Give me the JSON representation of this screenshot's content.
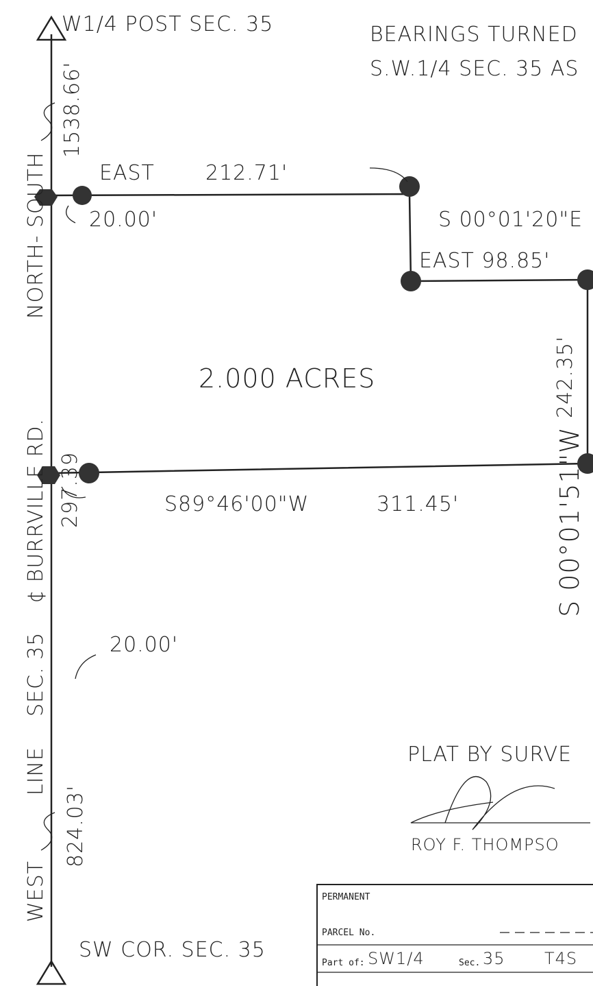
{
  "header": {
    "corner_top": "W1/4 POST SEC. 35",
    "note_line1": "BEARINGS TURNED",
    "note_line2": "S.W.1/4 SEC. 35 AS"
  },
  "plat": {
    "dist_north": "1538.66'",
    "east_label": "EAST",
    "east_dist": "212.71'",
    "offset_top": "20.00'",
    "bearing_notch": "S 00°01'20\"E",
    "east_notch": "EAST 98.85'",
    "area": "2.000 ACRES",
    "east_side_dist": "242.35'",
    "east_side_bearing": "S 00°01'51\"W",
    "west_dist": "297.39",
    "offset_bottom": "20.00'",
    "south_bearing": "S89°46'00\"W",
    "south_dist": "311.45'",
    "dist_south": "824.03'",
    "corner_bottom": "SW COR. SEC. 35"
  },
  "road_label": [
    "WEST",
    "LINE",
    "SEC. 35",
    "¢ BURRVILLE RD.",
    "NORTH- SOUTH"
  ],
  "surveyor": {
    "caption": "PLAT BY SURVE",
    "name": "ROY F. THOMPSO"
  },
  "parcel_table": {
    "label1": "PERMANENT",
    "label2": "PARCEL No.",
    "part_of": "Part of:",
    "quarter": "SW1/4",
    "sec_label": "Sec.",
    "sec": "35",
    "township": "T4S"
  }
}
